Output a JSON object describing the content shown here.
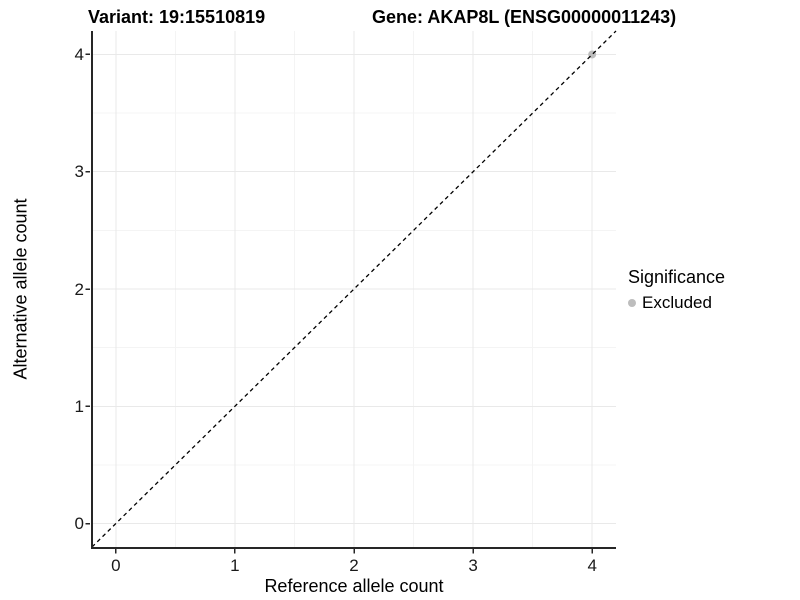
{
  "chart_data": {
    "type": "scatter",
    "title_left": "Variant: 19:15510819",
    "title_right": "Gene: AKAP8L (ENSG00000011243)",
    "xlabel": "Reference allele count",
    "ylabel": "Alternative allele count",
    "xlim": [
      -0.2,
      4.2
    ],
    "ylim": [
      -0.2,
      4.2
    ],
    "x_ticks": [
      0,
      1,
      2,
      3,
      4
    ],
    "y_ticks": [
      0,
      1,
      2,
      3,
      4
    ],
    "grid": "major+minor",
    "minor_grid_step": 0.5,
    "identity_line": {
      "style": "dashed",
      "slope": 1,
      "intercept": 0,
      "color": "#000000"
    },
    "series": [
      {
        "name": "Excluded",
        "color": "#bdbdbd",
        "points": [
          {
            "x": 4,
            "y": 4
          }
        ]
      }
    ],
    "legend": {
      "title": "Significance",
      "position": "right",
      "entries": [
        {
          "label": "Excluded",
          "color": "#bdbdbd"
        }
      ]
    }
  },
  "colors": {
    "background": "#ffffff",
    "axis_line": "#262626",
    "tick_mark": "#262626",
    "tick_label": "#1a1a1a",
    "grid_major": "#e9e9e9",
    "grid_minor": "#f4f4f4",
    "dashed_line": "#000000",
    "excluded_point": "#bdbdbd"
  }
}
